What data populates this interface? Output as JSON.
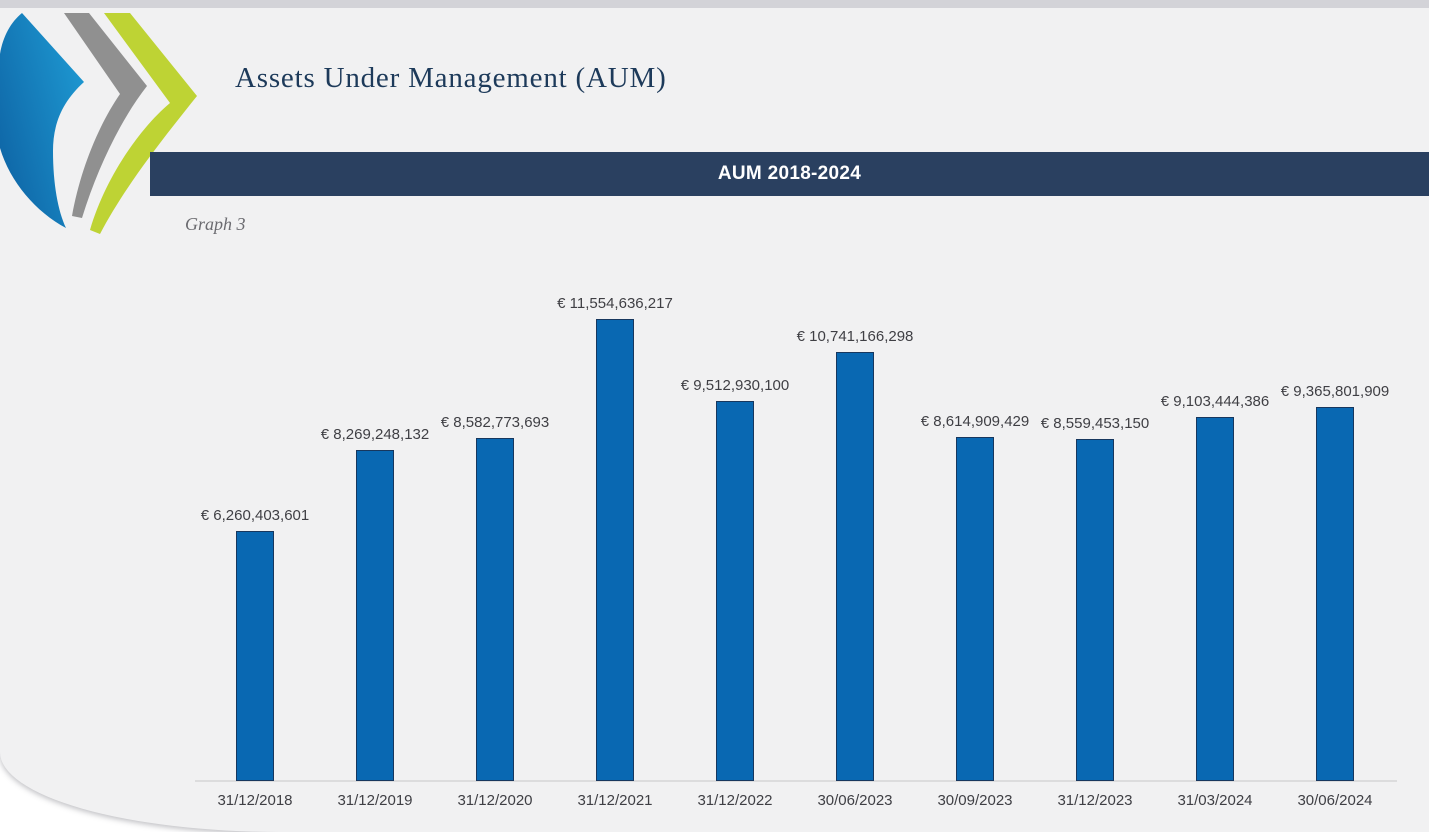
{
  "header": {
    "title": "Assets Under Management (AUM)",
    "logo": {
      "name": "triple-chevron-swoosh-logo",
      "colors": {
        "blue_dark": "#0e63a4",
        "blue_light": "#1e9ad3",
        "gray": "#909090",
        "green": "#bed334"
      }
    }
  },
  "banner": {
    "label": "AUM 2018-2024",
    "background": "#2a4060",
    "text_color": "#ffffff"
  },
  "caption": "Graph 3",
  "chart_data": {
    "type": "bar",
    "title": "AUM 2018-2024",
    "categories": [
      "31/12/2018",
      "31/12/2019",
      "31/12/2020",
      "31/12/2021",
      "31/12/2022",
      "30/06/2023",
      "30/09/2023",
      "31/12/2023",
      "31/03/2024",
      "30/06/2024"
    ],
    "values": [
      6260403601,
      8269248132,
      8582773693,
      11554636217,
      9512930100,
      10741166298,
      8614909429,
      8559453150,
      9103444386,
      9365801909
    ],
    "data_labels": [
      "€ 6,260,403,601",
      "€ 8,269,248,132",
      "€ 8,582,773,693",
      "€ 11,554,636,217",
      "€ 9,512,930,100",
      "€ 10,741,166,298",
      "€ 8,614,909,429",
      "€ 8,559,453,150",
      "€ 9,103,444,386",
      "€ 9,365,801,909"
    ],
    "currency": "EUR",
    "xlabel": "",
    "ylabel": "",
    "ylim": [
      0,
      11554636217
    ],
    "grid": false,
    "legend": false,
    "bar_color": "#0968b2",
    "bar_border_color": "#17375e",
    "axis_line_color": "#dcdcdd",
    "label_color": "#3f3f44",
    "background_color": "#f1f1f2"
  }
}
